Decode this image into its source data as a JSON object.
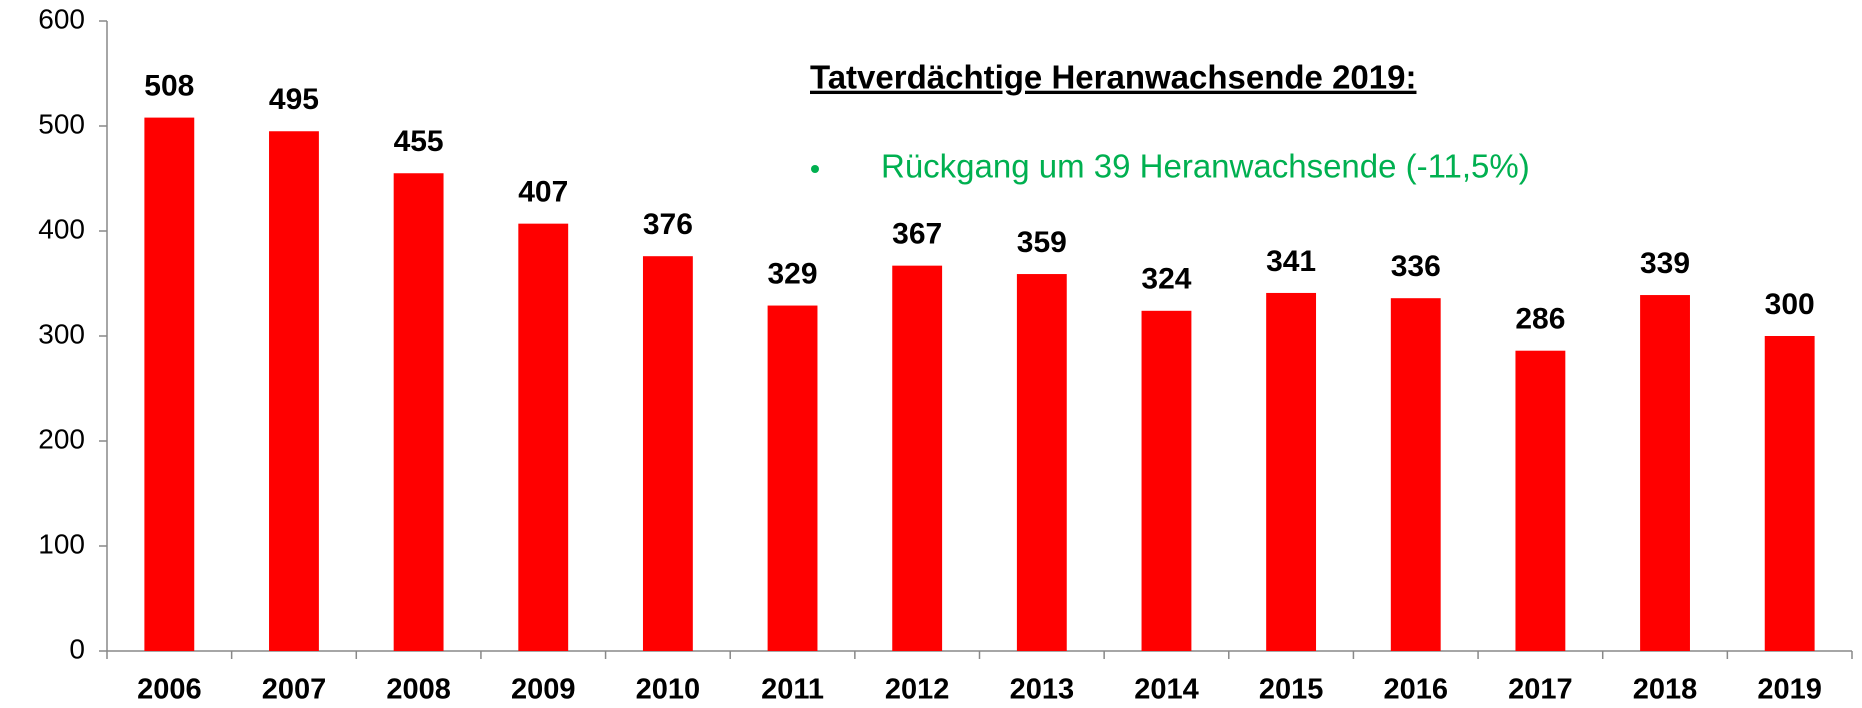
{
  "chart_data": {
    "type": "bar",
    "categories": [
      "2006",
      "2007",
      "2008",
      "2009",
      "2010",
      "2011",
      "2012",
      "2013",
      "2014",
      "2015",
      "2016",
      "2017",
      "2018",
      "2019"
    ],
    "values": [
      508,
      495,
      455,
      407,
      376,
      329,
      367,
      359,
      324,
      341,
      336,
      286,
      339,
      300
    ],
    "color": "#ff0000",
    "ylim": [
      0,
      600
    ],
    "yticks": [
      0,
      100,
      200,
      300,
      400,
      500,
      600
    ],
    "annotation_title": "Tatverdächtige Heranwachsende 2019:",
    "annotations": [
      "Rückgang um 39 Heranwachsende (-11,5%)"
    ]
  }
}
